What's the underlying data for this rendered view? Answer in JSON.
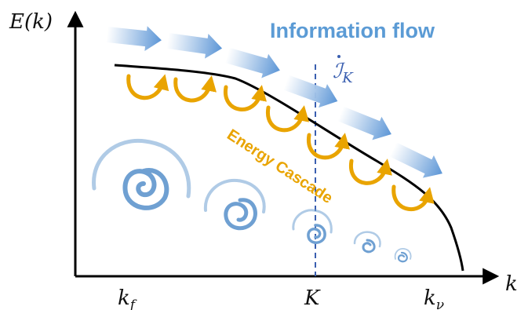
{
  "axes": {
    "y_label_main": "E",
    "y_label_arg": "(k)",
    "x_label": "k"
  },
  "ticks": {
    "kf_main": "k",
    "kf_sub": "f",
    "K": "K",
    "knu_main": "k",
    "knu_sub": "ν"
  },
  "labels": {
    "information_flow": "Information flow",
    "info_symbol_main": "ℐ",
    "info_symbol_sub": "K",
    "energy_cascade": "Energy Cascade"
  },
  "colors": {
    "info_arrow": "#5b95d6",
    "info_title": "#5b9bd5",
    "cascade": "#e9a400",
    "spiral": "#6fa0d2",
    "dashed_line": "#3a5fb0",
    "curve": "#000000"
  },
  "icons": {
    "info_arrows": "block-arrow-icon",
    "cascade_loops": "curl-arrow-icon",
    "eddies": "spiral-eddy-icon"
  }
}
